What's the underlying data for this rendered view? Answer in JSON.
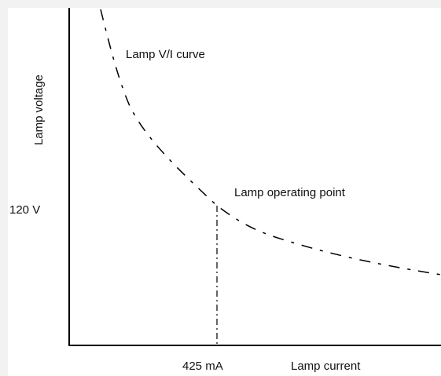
{
  "diagram": {
    "curve_label": "Lamp V/I curve",
    "point_label": "Lamp operating point",
    "y_axis_label": "Lamp voltage",
    "x_axis_label": "Lamp current",
    "voltage_label": "120 V",
    "current_label": "425 mA"
  }
}
